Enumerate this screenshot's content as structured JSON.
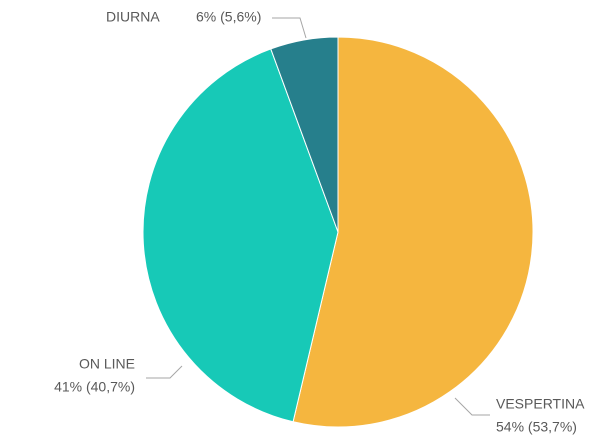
{
  "chart_data": {
    "type": "pie",
    "categories": [
      "VESPERTINA",
      "ON LINE",
      "DIURNA"
    ],
    "values": [
      53.7,
      40.7,
      5.6
    ],
    "value_labels": [
      "54% (53,7%)",
      "41% (40,7%)",
      "6% (5,6%)"
    ],
    "colors": [
      "#f5b63f",
      "#17c9b7",
      "#267f8c"
    ]
  }
}
